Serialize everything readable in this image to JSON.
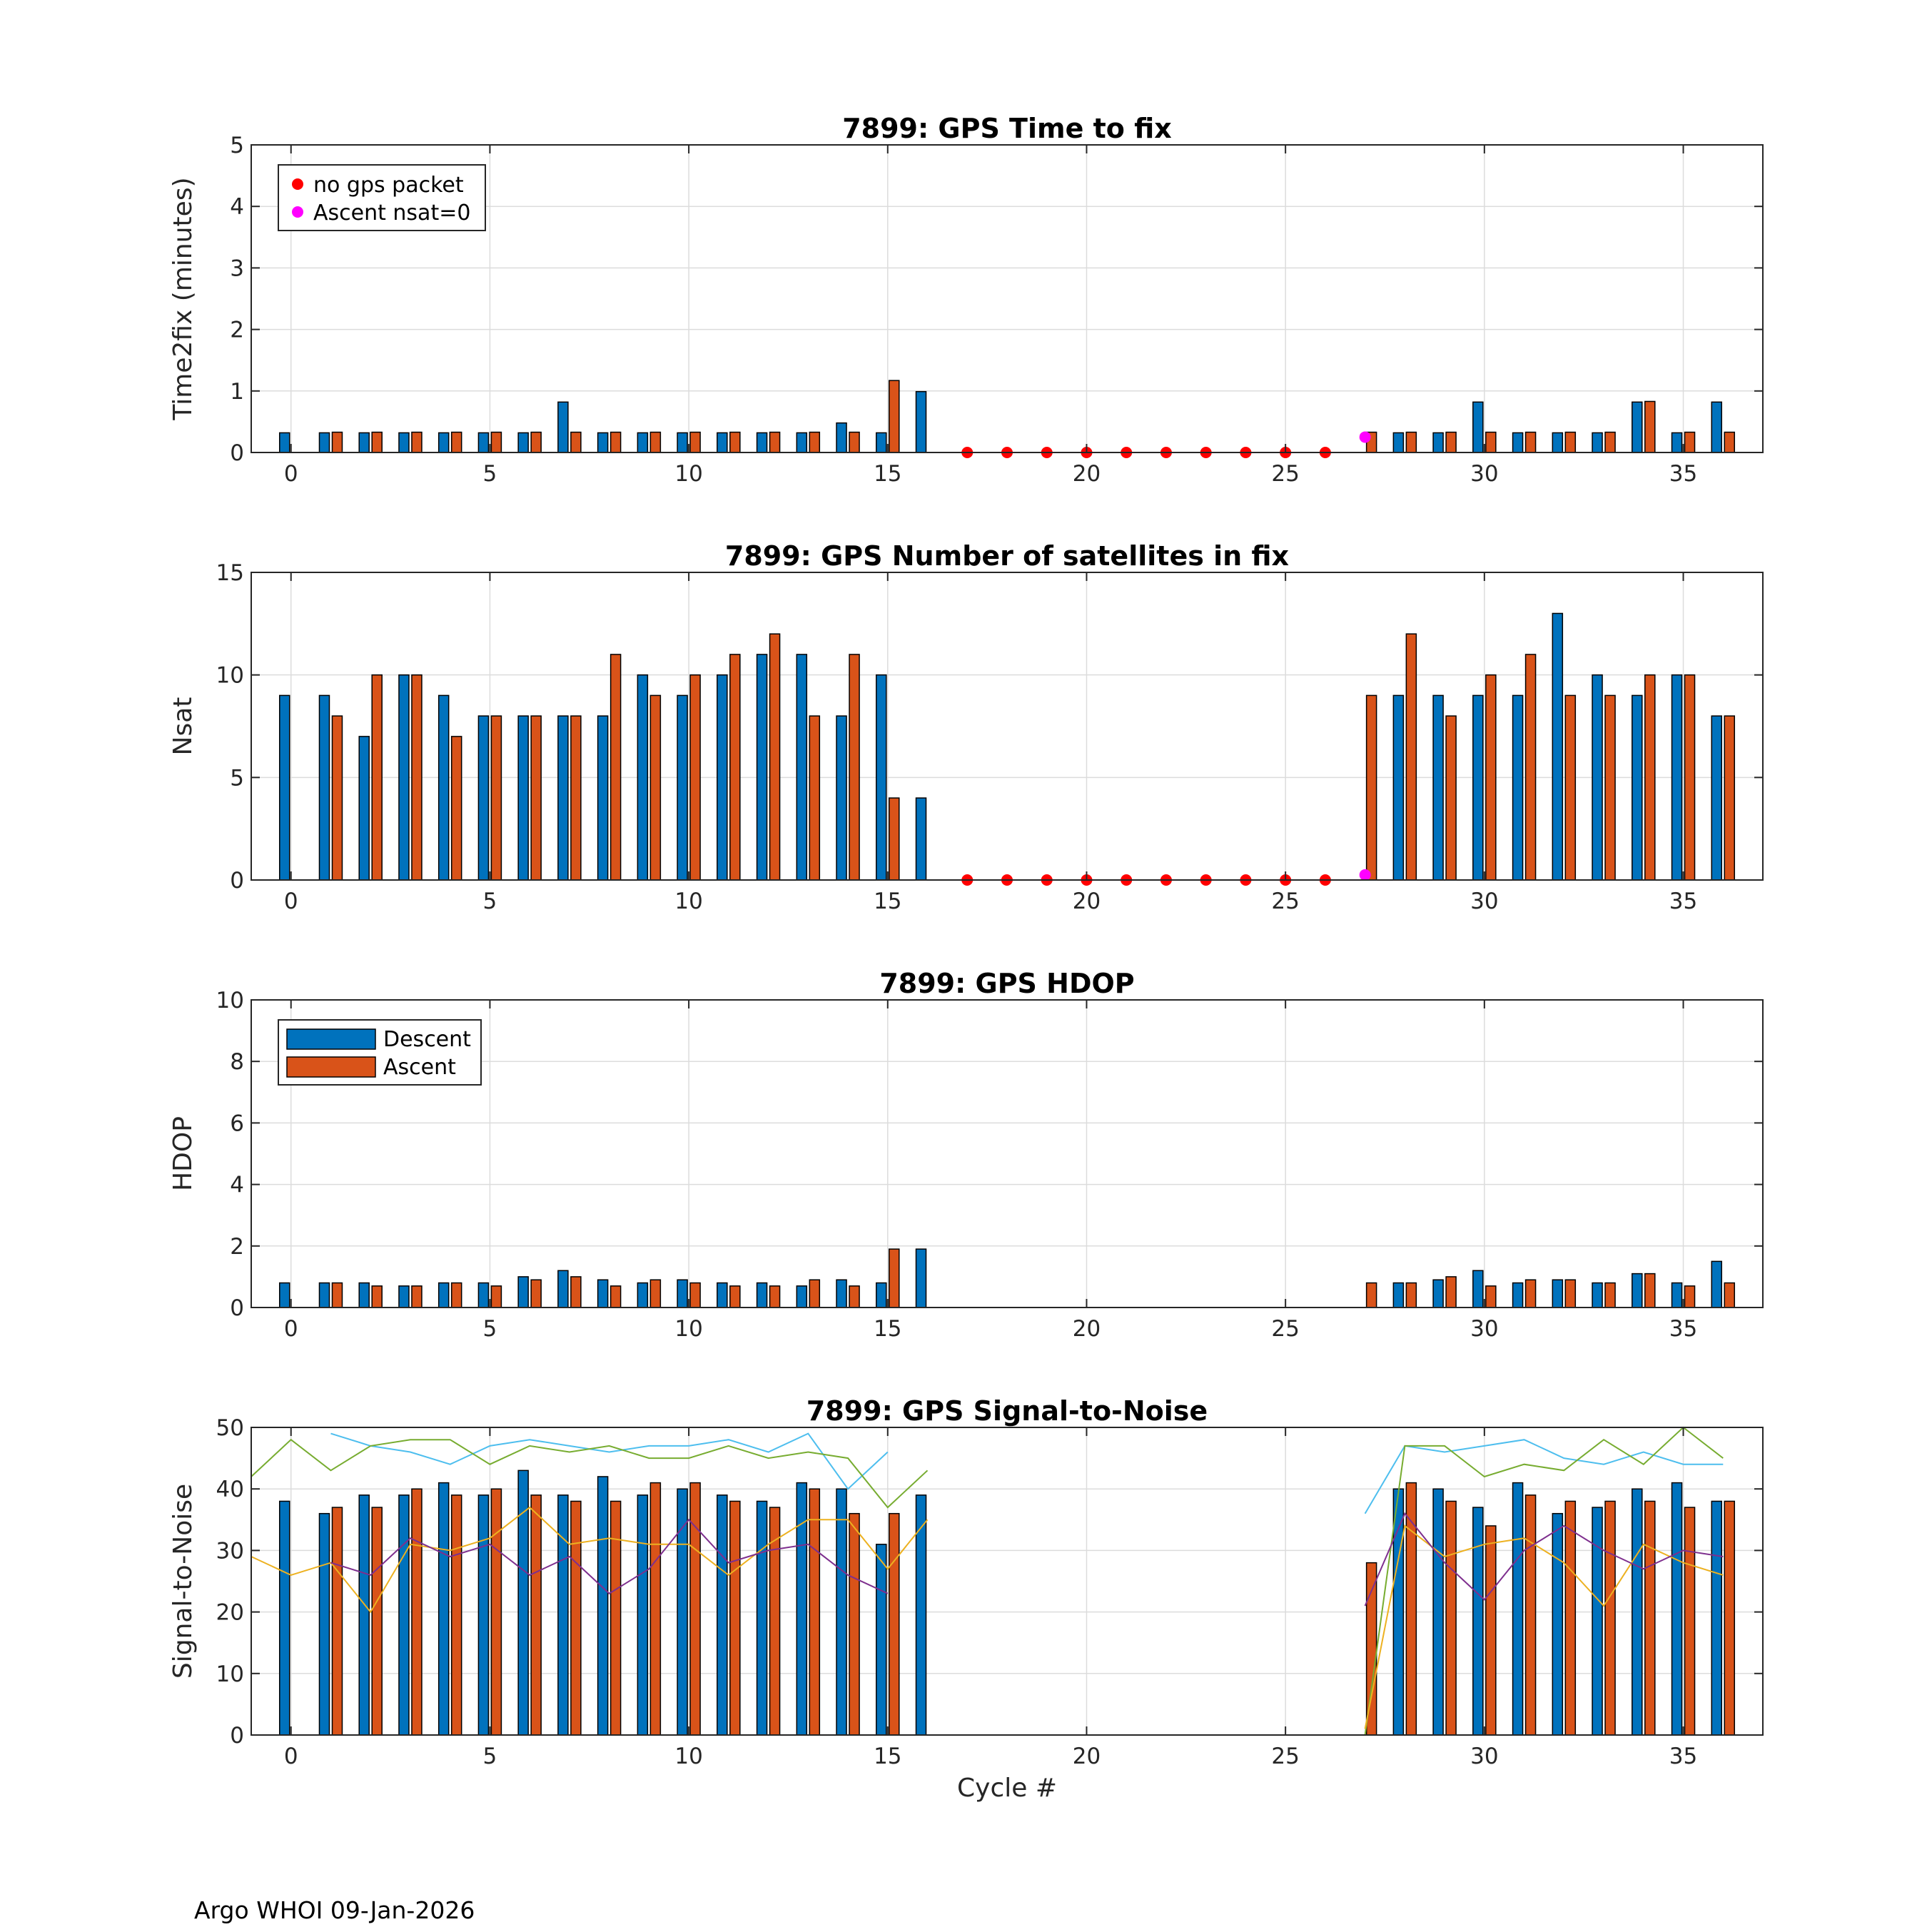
{
  "footer": "Argo WHOI 09-Jan-2026",
  "colors": {
    "descent": "#0072BD",
    "ascent": "#D95319",
    "no_gps": "#FF0000",
    "ascent_nsat0": "#FF00FF",
    "snr_lines": [
      "#4DBEEE",
      "#77AC30",
      "#EDB120",
      "#7E2F8E"
    ]
  },
  "legend_markers": {
    "no_gps": "no gps packet",
    "nsat0": "Ascent nsat=0"
  },
  "legend_bars": {
    "descent": "Descent",
    "ascent": "Ascent"
  },
  "chart_data": [
    {
      "type": "bar",
      "title": "7899: GPS Time to fix",
      "xlabel": "",
      "ylabel": "Time2fix (minutes)",
      "xlim": [
        -1,
        37
      ],
      "ylim": [
        0,
        5
      ],
      "xticks": [
        0,
        5,
        10,
        15,
        20,
        25,
        30,
        35
      ],
      "yticks": [
        0,
        1,
        2,
        3,
        4,
        5
      ],
      "categories": [
        0,
        1,
        2,
        3,
        4,
        5,
        6,
        7,
        8,
        9,
        10,
        11,
        12,
        13,
        14,
        15,
        16,
        17,
        18,
        19,
        20,
        21,
        22,
        23,
        24,
        25,
        26,
        27,
        28,
        29,
        30,
        31,
        32,
        33,
        34,
        35,
        36
      ],
      "series": [
        {
          "name": "Descent",
          "values": [
            0.32,
            0.32,
            0.32,
            0.32,
            0.32,
            0.32,
            0.32,
            0.82,
            0.32,
            0.32,
            0.32,
            0.32,
            0.32,
            0.32,
            0.48,
            0.32,
            0.99,
            0,
            0,
            0,
            0,
            0,
            0,
            0,
            0,
            0,
            0,
            0,
            0.32,
            0.32,
            0.82,
            0.32,
            0.32,
            0.32,
            0.82,
            0.32,
            0.82
          ]
        },
        {
          "name": "Ascent",
          "values": [
            0,
            0.33,
            0.33,
            0.33,
            0.33,
            0.33,
            0.33,
            0.33,
            0.33,
            0.33,
            0.33,
            0.33,
            0.33,
            0.33,
            0.33,
            1.17,
            0,
            0,
            0,
            0,
            0,
            0,
            0,
            0,
            0,
            0,
            0,
            0.33,
            0.33,
            0.33,
            0.33,
            0.33,
            0.33,
            0.33,
            0.83,
            0.33,
            0.33
          ]
        }
      ],
      "markers": {
        "no_gps_cycles": [
          17,
          18,
          19,
          20,
          21,
          22,
          23,
          24,
          25,
          26
        ],
        "no_gps_y": 0,
        "nsat0_cycles": [
          27
        ],
        "nsat0_y": 0.25
      },
      "legend": "markers-top-left"
    },
    {
      "type": "bar",
      "title": "7899: GPS Number of satellites in fix",
      "xlabel": "",
      "ylabel": "Nsat",
      "xlim": [
        -1,
        37
      ],
      "ylim": [
        0,
        15
      ],
      "xticks": [
        0,
        5,
        10,
        15,
        20,
        25,
        30,
        35
      ],
      "yticks": [
        0,
        5,
        10,
        15
      ],
      "categories": [
        0,
        1,
        2,
        3,
        4,
        5,
        6,
        7,
        8,
        9,
        10,
        11,
        12,
        13,
        14,
        15,
        16,
        17,
        18,
        19,
        20,
        21,
        22,
        23,
        24,
        25,
        26,
        27,
        28,
        29,
        30,
        31,
        32,
        33,
        34,
        35,
        36
      ],
      "series": [
        {
          "name": "Descent",
          "values": [
            9,
            9,
            7,
            10,
            9,
            8,
            8,
            8,
            8,
            10,
            9,
            10,
            11,
            11,
            8,
            10,
            4,
            0,
            0,
            0,
            0,
            0,
            0,
            0,
            0,
            0,
            0,
            0,
            9,
            9,
            9,
            9,
            13,
            10,
            9,
            10,
            8
          ]
        },
        {
          "name": "Ascent",
          "values": [
            0,
            8,
            10,
            10,
            7,
            8,
            8,
            8,
            11,
            9,
            10,
            11,
            12,
            8,
            11,
            4,
            0,
            0,
            0,
            0,
            0,
            0,
            0,
            0,
            0,
            0,
            0,
            9,
            12,
            8,
            10,
            11,
            9,
            9,
            10,
            10,
            8
          ]
        }
      ],
      "markers": {
        "no_gps_cycles": [
          17,
          18,
          19,
          20,
          21,
          22,
          23,
          24,
          25,
          26
        ],
        "no_gps_y": 0,
        "nsat0_cycles": [
          27
        ],
        "nsat0_y": 0.25
      },
      "legend": "none"
    },
    {
      "type": "bar",
      "title": "7899: GPS HDOP",
      "xlabel": "",
      "ylabel": "HDOP",
      "xlim": [
        -1,
        37
      ],
      "ylim": [
        0,
        10
      ],
      "xticks": [
        0,
        5,
        10,
        15,
        20,
        25,
        30,
        35
      ],
      "yticks": [
        0,
        2,
        4,
        6,
        8,
        10
      ],
      "categories": [
        0,
        1,
        2,
        3,
        4,
        5,
        6,
        7,
        8,
        9,
        10,
        11,
        12,
        13,
        14,
        15,
        16,
        17,
        18,
        19,
        20,
        21,
        22,
        23,
        24,
        25,
        26,
        27,
        28,
        29,
        30,
        31,
        32,
        33,
        34,
        35,
        36
      ],
      "series": [
        {
          "name": "Descent",
          "values": [
            0.8,
            0.8,
            0.8,
            0.7,
            0.8,
            0.8,
            1.0,
            1.2,
            0.9,
            0.8,
            0.9,
            0.8,
            0.8,
            0.7,
            0.9,
            0.8,
            1.9,
            0,
            0,
            0,
            0,
            0,
            0,
            0,
            0,
            0,
            0,
            0,
            0.8,
            0.9,
            1.2,
            0.8,
            0.9,
            0.8,
            1.1,
            0.8,
            1.5
          ]
        },
        {
          "name": "Ascent",
          "values": [
            0,
            0.8,
            0.7,
            0.7,
            0.8,
            0.7,
            0.9,
            1.0,
            0.7,
            0.9,
            0.8,
            0.7,
            0.7,
            0.9,
            0.7,
            1.9,
            0,
            0,
            0,
            0,
            0,
            0,
            0,
            0,
            0,
            0,
            0,
            0.8,
            0.8,
            1.0,
            0.7,
            0.9,
            0.9,
            0.8,
            1.1,
            0.7,
            0.8
          ]
        }
      ],
      "legend": "bars-top-left"
    },
    {
      "type": "bar",
      "title": "7899: GPS Signal-to-Noise",
      "xlabel": "Cycle #",
      "ylabel": "Signal-to-Noise",
      "xlim": [
        -1,
        37
      ],
      "ylim": [
        0,
        50
      ],
      "xticks": [
        0,
        5,
        10,
        15,
        20,
        25,
        30,
        35
      ],
      "yticks": [
        0,
        10,
        20,
        30,
        40,
        50
      ],
      "categories": [
        0,
        1,
        2,
        3,
        4,
        5,
        6,
        7,
        8,
        9,
        10,
        11,
        12,
        13,
        14,
        15,
        16,
        17,
        18,
        19,
        20,
        21,
        22,
        23,
        24,
        25,
        26,
        27,
        28,
        29,
        30,
        31,
        32,
        33,
        34,
        35,
        36
      ],
      "series": [
        {
          "name": "Descent",
          "values": [
            38,
            36,
            39,
            39,
            41,
            39,
            43,
            39,
            42,
            39,
            40,
            39,
            38,
            41,
            40,
            31,
            39,
            0,
            0,
            0,
            0,
            0,
            0,
            0,
            0,
            0,
            0,
            0,
            40,
            40,
            37,
            41,
            36,
            37,
            40,
            41,
            38
          ]
        },
        {
          "name": "Ascent",
          "values": [
            0,
            37,
            37,
            40,
            39,
            40,
            39,
            38,
            38,
            41,
            41,
            38,
            37,
            40,
            36,
            36,
            0,
            0,
            0,
            0,
            0,
            0,
            0,
            0,
            0,
            0,
            0,
            28,
            41,
            38,
            34,
            39,
            38,
            38,
            38,
            37,
            38
          ]
        }
      ],
      "lines": [
        {
          "name": "snr-line-1",
          "segments": [
            {
              "x": [
                1,
                2,
                3,
                4,
                5,
                6,
                7,
                8,
                9,
                10,
                11,
                12,
                13,
                14,
                15
              ],
              "y": [
                49,
                47,
                46,
                44,
                47,
                48,
                47,
                46,
                47,
                47,
                48,
                46,
                49,
                40,
                46
              ]
            },
            {
              "x": [
                27,
                28,
                29,
                30,
                31,
                32,
                33,
                34,
                35,
                36
              ],
              "y": [
                36,
                47,
                46,
                47,
                48,
                45,
                44,
                46,
                44,
                44
              ]
            }
          ]
        },
        {
          "name": "snr-line-2",
          "segments": [
            {
              "x": [
                -1,
                0,
                1,
                2,
                3,
                4,
                5,
                6,
                7,
                8,
                9,
                10,
                11,
                12,
                13,
                14,
                15,
                16
              ],
              "y": [
                42,
                48,
                43,
                47,
                48,
                48,
                44,
                47,
                46,
                47,
                45,
                45,
                47,
                45,
                46,
                45,
                37,
                43
              ]
            },
            {
              "x": [
                27,
                28,
                29,
                30,
                31,
                32,
                33,
                34,
                35,
                36
              ],
              "y": [
                0,
                47,
                47,
                42,
                44,
                43,
                48,
                44,
                50,
                45
              ]
            }
          ]
        },
        {
          "name": "snr-line-3",
          "segments": [
            {
              "x": [
                -1,
                0,
                1,
                2,
                3,
                4,
                5,
                6,
                7,
                8,
                9,
                10,
                11,
                12,
                13,
                14,
                15,
                16
              ],
              "y": [
                29,
                26,
                28,
                20,
                31,
                30,
                32,
                37,
                31,
                32,
                31,
                31,
                26,
                31,
                35,
                35,
                27,
                35
              ]
            },
            {
              "x": [
                27,
                28,
                29,
                30,
                31,
                32,
                33,
                34,
                35,
                36
              ],
              "y": [
                1,
                34,
                29,
                31,
                32,
                28,
                21,
                31,
                28,
                26
              ]
            }
          ]
        },
        {
          "name": "snr-line-4",
          "segments": [
            {
              "x": [
                1,
                2,
                3,
                4,
                5,
                6,
                7,
                8,
                9,
                10,
                11,
                12,
                13,
                14,
                15
              ],
              "y": [
                28,
                26,
                32,
                29,
                31,
                26,
                29,
                23,
                27,
                35,
                28,
                30,
                31,
                26,
                23
              ]
            },
            {
              "x": [
                27,
                28,
                29,
                30,
                31,
                32,
                33,
                34,
                35,
                36
              ],
              "y": [
                21,
                36,
                28,
                22,
                30,
                34,
                30,
                27,
                30,
                29
              ]
            }
          ]
        }
      ],
      "legend": "none"
    }
  ]
}
